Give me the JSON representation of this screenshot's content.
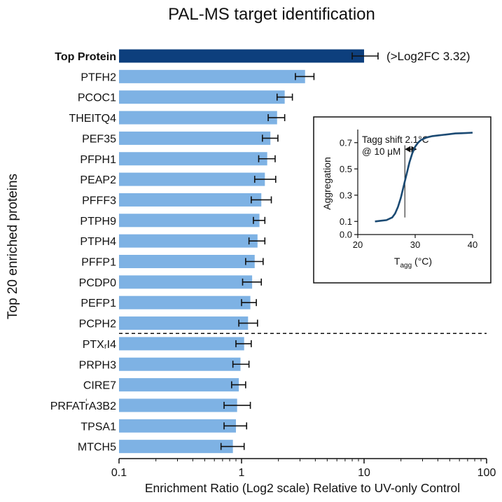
{
  "chart_data": [
    {
      "type": "bar",
      "orientation": "horizontal",
      "title": "PAL-MS target identification",
      "xlabel": "Enrichment Ratio (Log2 scale) Relative to UV-only Control",
      "ylabel": "Top 20 enriched proteins",
      "xscale": "log",
      "xlim": [
        0.1,
        100
      ],
      "xticks": [
        "0.1",
        "1",
        "10",
        "100"
      ],
      "xtick_values": [
        0.1,
        1,
        10,
        100
      ],
      "categories": [
        "Top Protein",
        "PTFH2",
        "PCOC1",
        "THEITQ4",
        "PEF35",
        "PFPH1",
        "PEAP2",
        "PFFF3",
        "PTPH9",
        "PTPH4",
        "PFFP1",
        "PCDP0",
        "PEFP1",
        "PCPH2",
        "PTXᵣI4",
        "PRPH3",
        "CIRE7",
        "PRFATr͑A3B2",
        "TPSA1",
        "MTCH5"
      ],
      "values": [
        10.0,
        3.3,
        2.25,
        1.95,
        1.72,
        1.62,
        1.55,
        1.45,
        1.4,
        1.35,
        1.28,
        1.22,
        1.18,
        1.13,
        1.05,
        0.98,
        0.95,
        0.92,
        0.9,
        0.85
      ],
      "error_low": [
        8.0,
        2.75,
        1.95,
        1.65,
        1.48,
        1.38,
        1.28,
        1.2,
        1.25,
        1.15,
        1.08,
        1.02,
        1.0,
        0.95,
        0.9,
        0.85,
        0.83,
        0.72,
        0.72,
        0.68
      ],
      "error_high": [
        13.0,
        3.9,
        2.6,
        2.25,
        1.98,
        1.88,
        1.9,
        1.75,
        1.55,
        1.55,
        1.5,
        1.45,
        1.32,
        1.35,
        1.2,
        1.15,
        1.08,
        1.18,
        1.1,
        1.05
      ],
      "highlight_index": 0,
      "highlight_color": "#0d3f7d",
      "bar_color": "#7eb2e4",
      "annotation": "(>Log2FC 3.32)",
      "separator_after": "PCPH2",
      "grid": false
    },
    {
      "type": "line",
      "xlabel_main": "T",
      "xlabel_sub": "agg",
      "xlabel_unit": " (°C)",
      "ylabel": "Aggregation",
      "xlim": [
        20,
        40
      ],
      "ylim": [
        0.0,
        0.8
      ],
      "xticks": [
        "20",
        "30",
        "40"
      ],
      "xtick_values": [
        20,
        30,
        40
      ],
      "yticks": [
        "0.0",
        "0.1",
        "0.3",
        "0.5",
        "0.7"
      ],
      "ytick_values": [
        0.0,
        0.1,
        0.3,
        0.5,
        0.7
      ],
      "x": [
        23.0,
        24.0,
        25.0,
        26.0,
        26.5,
        27.0,
        27.5,
        28.0,
        28.5,
        29.0,
        29.5,
        30.0,
        30.5,
        31.0,
        32.0,
        33.0,
        34.0,
        35.0,
        36.0,
        37.0,
        38.0,
        39.0,
        40.0
      ],
      "y": [
        0.1,
        0.105,
        0.11,
        0.13,
        0.16,
        0.21,
        0.28,
        0.37,
        0.46,
        0.55,
        0.62,
        0.67,
        0.7,
        0.72,
        0.74,
        0.75,
        0.755,
        0.76,
        0.765,
        0.77,
        0.772,
        0.774,
        0.776
      ],
      "line_color": "#1b4a73",
      "annotation_line1": "Tagg shift 2.1°C",
      "annotation_line2": "@ 10 μM",
      "shift_from": 28.2,
      "shift_to": 30.3,
      "shift_level": 0.65,
      "marker_x": 28.2,
      "grid": false
    }
  ]
}
